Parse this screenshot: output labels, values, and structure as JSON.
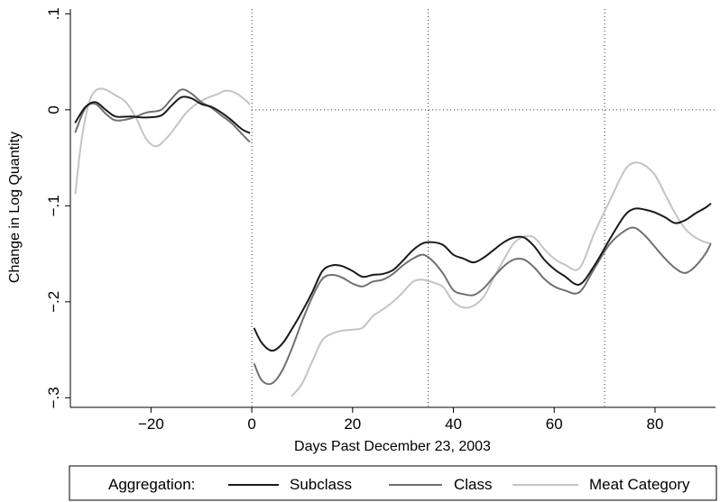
{
  "chart_data": {
    "type": "line",
    "title": "",
    "xlabel": "Days Past December 23, 2003",
    "ylabel": "Change in Log Quantity",
    "xlim": [
      -36,
      92
    ],
    "ylim": [
      -0.31,
      0.105
    ],
    "xticks": [
      {
        "value": -20,
        "label": "−20"
      },
      {
        "value": 0,
        "label": "0"
      },
      {
        "value": 20,
        "label": "20"
      },
      {
        "value": 40,
        "label": "40"
      },
      {
        "value": 60,
        "label": "60"
      },
      {
        "value": 80,
        "label": "80"
      }
    ],
    "yticks": [
      {
        "value": 0.1,
        "label": ".1"
      },
      {
        "value": 0,
        "label": "0"
      },
      {
        "value": -0.1,
        "label": "−.1"
      },
      {
        "value": -0.2,
        "label": "−.2"
      },
      {
        "value": -0.3,
        "label": "−.3"
      }
    ],
    "vertical_reference_lines": [
      0,
      35,
      70
    ],
    "horizontal_reference_line": 0,
    "grid": false,
    "legend": {
      "title": "Aggregation:",
      "position": "bottom"
    },
    "series": [
      {
        "name": "Subclass",
        "color": "#1a1a1a",
        "segments": [
          {
            "x": [
              -35,
              -33,
              -31,
              -29,
              -27,
              -24,
              -21,
              -18,
              -16,
              -14,
              -12,
              -10,
              -8,
              -6,
              -4,
              -2,
              -0.5
            ],
            "y": [
              -0.013,
              0.003,
              0.008,
              0.0,
              -0.007,
              -0.007,
              -0.008,
              -0.006,
              0.004,
              0.013,
              0.012,
              0.006,
              0.003,
              -0.003,
              -0.011,
              -0.02,
              -0.024
            ]
          },
          {
            "x": [
              0.5,
              2,
              4,
              6,
              8,
              10,
              12,
              14,
              16,
              18,
              20,
              22,
              24,
              26,
              28,
              30,
              32,
              34,
              36,
              38,
              40,
              42,
              44,
              46,
              48,
              50,
              52,
              54,
              56,
              58,
              60,
              62,
              65,
              68,
              71,
              74,
              76,
              78,
              80,
              82,
              84,
              86,
              88,
              90,
              91
            ],
            "y": [
              -0.228,
              -0.243,
              -0.251,
              -0.244,
              -0.228,
              -0.21,
              -0.19,
              -0.168,
              -0.162,
              -0.163,
              -0.168,
              -0.174,
              -0.172,
              -0.171,
              -0.167,
              -0.157,
              -0.146,
              -0.139,
              -0.138,
              -0.141,
              -0.151,
              -0.155,
              -0.159,
              -0.154,
              -0.146,
              -0.138,
              -0.133,
              -0.133,
              -0.142,
              -0.156,
              -0.166,
              -0.173,
              -0.182,
              -0.162,
              -0.135,
              -0.11,
              -0.103,
              -0.104,
              -0.107,
              -0.112,
              -0.118,
              -0.115,
              -0.108,
              -0.102,
              -0.098
            ]
          }
        ]
      },
      {
        "name": "Class",
        "color": "#707070",
        "segments": [
          {
            "x": [
              -35,
              -33,
              -31,
              -29,
              -27,
              -24,
              -21,
              -18,
              -16,
              -14,
              -12,
              -10,
              -8,
              -6,
              -4,
              -2,
              -0.5
            ],
            "y": [
              -0.023,
              0.002,
              0.006,
              -0.004,
              -0.011,
              -0.009,
              -0.003,
              0.0,
              0.011,
              0.021,
              0.017,
              0.008,
              0.002,
              -0.006,
              -0.014,
              -0.025,
              -0.033
            ]
          },
          {
            "x": [
              0.5,
              2,
              4,
              6,
              8,
              10,
              12,
              14,
              16,
              18,
              20,
              22,
              24,
              26,
              28,
              30,
              32,
              34,
              36,
              38,
              40,
              42,
              44,
              46,
              48,
              50,
              52,
              54,
              56,
              58,
              60,
              62,
              65,
              68,
              71,
              74,
              76,
              78,
              80,
              82,
              84,
              86,
              88,
              90,
              91
            ],
            "y": [
              -0.265,
              -0.282,
              -0.285,
              -0.272,
              -0.248,
              -0.22,
              -0.195,
              -0.176,
              -0.172,
              -0.175,
              -0.181,
              -0.184,
              -0.179,
              -0.177,
              -0.171,
              -0.162,
              -0.155,
              -0.151,
              -0.158,
              -0.171,
              -0.188,
              -0.192,
              -0.193,
              -0.186,
              -0.174,
              -0.163,
              -0.156,
              -0.156,
              -0.164,
              -0.176,
              -0.184,
              -0.188,
              -0.19,
              -0.165,
              -0.14,
              -0.126,
              -0.123,
              -0.131,
              -0.143,
              -0.155,
              -0.165,
              -0.17,
              -0.163,
              -0.15,
              -0.14
            ]
          }
        ]
      },
      {
        "name": "Meat Category",
        "color": "#c4c4c4",
        "segments": [
          {
            "x": [
              -35,
              -34,
              -33,
              -32,
              -31,
              -30,
              -29,
              -27,
              -25,
              -23,
              -21,
              -19,
              -17,
              -15,
              -13,
              -11,
              -9,
              -7,
              -5,
              -3,
              -1,
              -0.5
            ],
            "y": [
              -0.087,
              -0.04,
              -0.008,
              0.012,
              0.02,
              0.022,
              0.021,
              0.015,
              0.008,
              -0.008,
              -0.03,
              -0.038,
              -0.03,
              -0.017,
              -0.003,
              0.006,
              0.012,
              0.016,
              0.02,
              0.017,
              0.009,
              0.006
            ]
          },
          {
            "x": [
              8,
              10,
              12,
              14,
              16,
              18,
              20,
              22,
              24,
              26,
              28,
              30,
              32,
              34,
              36,
              38,
              40,
              42,
              44,
              46,
              48,
              50,
              52,
              54,
              56,
              58,
              60,
              62,
              65,
              68,
              71,
              74,
              76,
              78,
              80,
              82,
              84,
              86,
              88,
              90,
              91
            ],
            "y": [
              -0.298,
              -0.285,
              -0.262,
              -0.24,
              -0.233,
              -0.23,
              -0.229,
              -0.227,
              -0.215,
              -0.208,
              -0.2,
              -0.19,
              -0.179,
              -0.177,
              -0.18,
              -0.185,
              -0.2,
              -0.206,
              -0.204,
              -0.195,
              -0.175,
              -0.156,
              -0.139,
              -0.132,
              -0.133,
              -0.145,
              -0.155,
              -0.161,
              -0.165,
              -0.128,
              -0.095,
              -0.063,
              -0.055,
              -0.058,
              -0.068,
              -0.088,
              -0.108,
              -0.124,
              -0.133,
              -0.138,
              -0.139
            ]
          }
        ]
      }
    ]
  }
}
